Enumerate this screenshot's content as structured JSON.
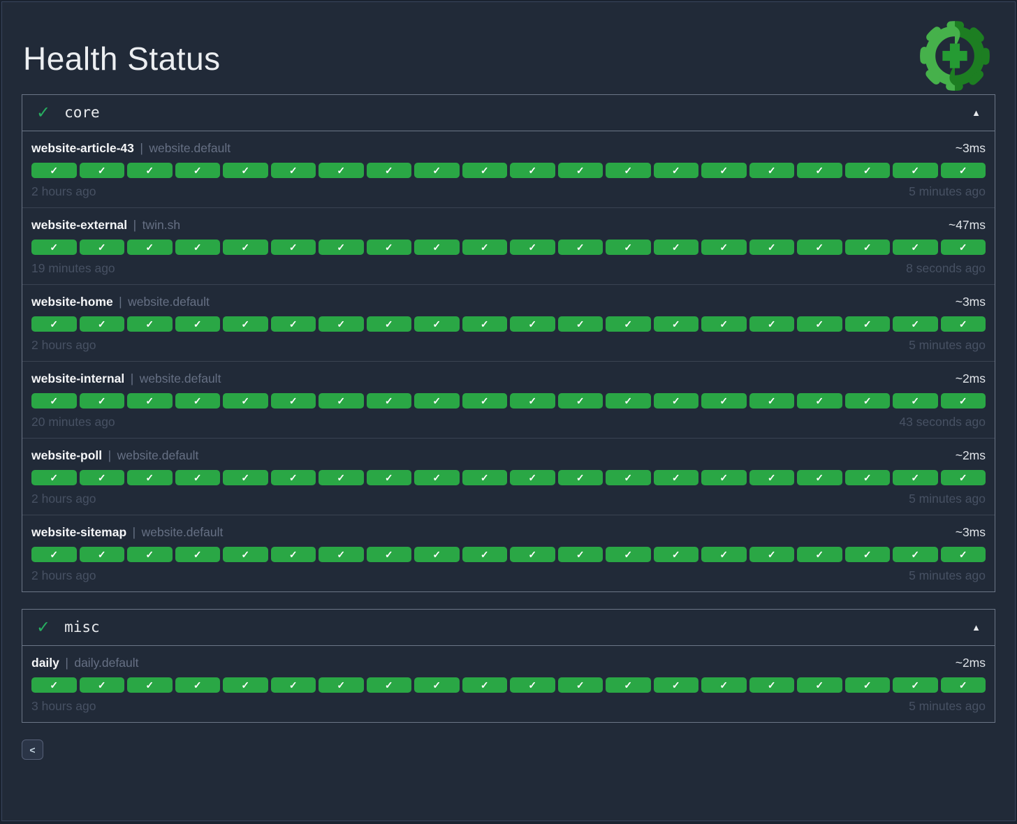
{
  "page": {
    "title": "Health Status"
  },
  "ui": {
    "check_glyph": "✓",
    "collapse_glyph": "▲",
    "back_glyph": "<",
    "field_separator": "|"
  },
  "colors": {
    "status_up_green": "#2aa745",
    "section_check_green": "#27ae60",
    "logo_light_green": "#46b14b",
    "logo_dark_green": "#1d7e22",
    "logo_plus_green": "#259b33",
    "background": "#212a38"
  },
  "sections": [
    {
      "name": "core",
      "status": "up",
      "expanded": true,
      "services": [
        {
          "name": "website-article-43",
          "group": "website.default",
          "duration": "~3ms",
          "oldest": "2 hours ago",
          "newest": "5 minutes ago",
          "checks": {
            "count": 20,
            "status": "up"
          }
        },
        {
          "name": "website-external",
          "group": "twin.sh",
          "duration": "~47ms",
          "oldest": "19 minutes ago",
          "newest": "8 seconds ago",
          "checks": {
            "count": 20,
            "status": "up"
          }
        },
        {
          "name": "website-home",
          "group": "website.default",
          "duration": "~3ms",
          "oldest": "2 hours ago",
          "newest": "5 minutes ago",
          "checks": {
            "count": 20,
            "status": "up"
          }
        },
        {
          "name": "website-internal",
          "group": "website.default",
          "duration": "~2ms",
          "oldest": "20 minutes ago",
          "newest": "43 seconds ago",
          "checks": {
            "count": 20,
            "status": "up"
          }
        },
        {
          "name": "website-poll",
          "group": "website.default",
          "duration": "~2ms",
          "oldest": "2 hours ago",
          "newest": "5 minutes ago",
          "checks": {
            "count": 20,
            "status": "up"
          }
        },
        {
          "name": "website-sitemap",
          "group": "website.default",
          "duration": "~3ms",
          "oldest": "2 hours ago",
          "newest": "5 minutes ago",
          "checks": {
            "count": 20,
            "status": "up"
          }
        }
      ]
    },
    {
      "name": "misc",
      "status": "up",
      "expanded": true,
      "services": [
        {
          "name": "daily",
          "group": "daily.default",
          "duration": "~2ms",
          "oldest": "3 hours ago",
          "newest": "5 minutes ago",
          "checks": {
            "count": 20,
            "status": "up"
          }
        }
      ]
    }
  ]
}
